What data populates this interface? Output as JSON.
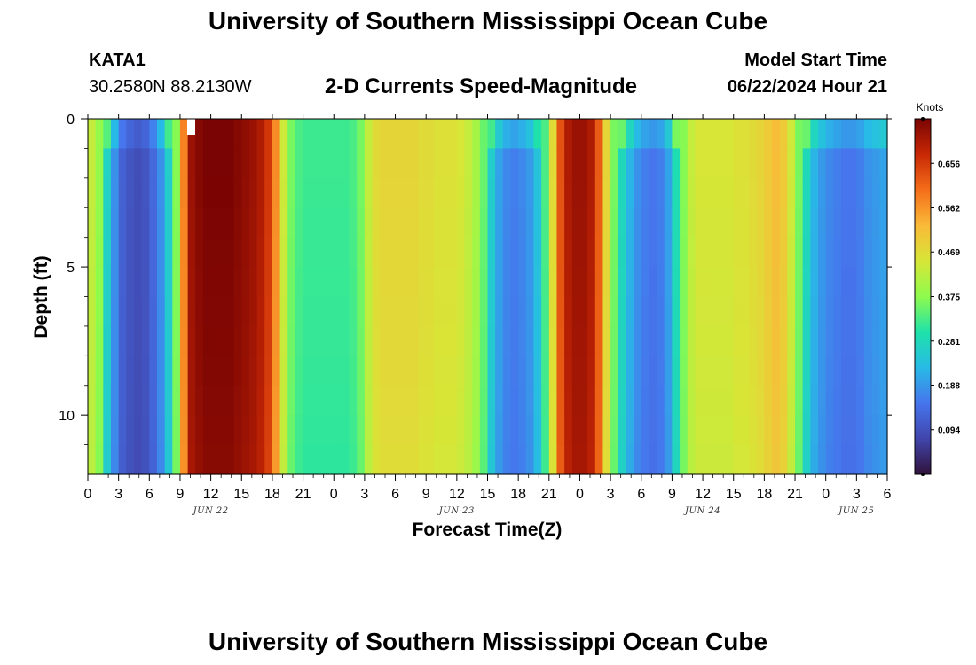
{
  "header": {
    "title": "University of Southern Mississippi Ocean Cube",
    "station": "KATA1",
    "coords": "30.2580N  88.2130W",
    "plot_title": "2-D Currents Speed-Magnitude",
    "model_start_label": "Model Start Time",
    "model_start_value": "06/22/2024 Hour 21"
  },
  "footer": {
    "title": "University of Southern Mississippi Ocean Cube"
  },
  "chart_data": {
    "type": "heatmap",
    "title": "2-D Currents Speed-Magnitude",
    "xlabel": "Forecast Time(Z)",
    "ylabel": "Depth (ft)",
    "colorbar_unit": "Knots",
    "colorbar_ticks": [
      "0.094",
      "0.188",
      "0.281",
      "0.375",
      "0.469",
      "0.562",
      "0.656"
    ],
    "colorbar_values": [
      0.094,
      0.188,
      0.281,
      0.375,
      0.469,
      0.562,
      0.656
    ],
    "value_range": [
      0.0,
      0.75
    ],
    "x_range_hours": [
      0,
      78
    ],
    "x_tick_labels": [
      "0",
      "3",
      "6",
      "9",
      "12",
      "15",
      "18",
      "21",
      "0",
      "3",
      "6",
      "9",
      "12",
      "15",
      "18",
      "21",
      "0",
      "3",
      "6",
      "9",
      "12",
      "15",
      "18",
      "21",
      "0",
      "3",
      "6"
    ],
    "date_labels": [
      {
        "label": "JUN 22",
        "hour": 12
      },
      {
        "label": "JUN 23",
        "hour": 36
      },
      {
        "label": "JUN 24",
        "hour": 60
      },
      {
        "label": "JUN 25",
        "hour": 75
      }
    ],
    "y_range_ft": [
      0,
      12
    ],
    "y_tick_labels": [
      "0",
      "5",
      "10"
    ],
    "y_tick_values": [
      0,
      5,
      10
    ],
    "speed_profile_columns": [
      0.43,
      0.38,
      0.27,
      0.18,
      0.12,
      0.1,
      0.09,
      0.1,
      0.13,
      0.18,
      0.26,
      0.37,
      0.58,
      0.72,
      0.74,
      0.75,
      0.75,
      0.75,
      0.75,
      0.74,
      0.73,
      0.72,
      0.7,
      0.66,
      0.57,
      0.44,
      0.36,
      0.33,
      0.32,
      0.32,
      0.32,
      0.32,
      0.32,
      0.32,
      0.33,
      0.36,
      0.43,
      0.47,
      0.48,
      0.48,
      0.48,
      0.48,
      0.48,
      0.47,
      0.47,
      0.46,
      0.46,
      0.46,
      0.45,
      0.43,
      0.4,
      0.35,
      0.26,
      0.2,
      0.17,
      0.16,
      0.17,
      0.19,
      0.24,
      0.33,
      0.47,
      0.63,
      0.7,
      0.72,
      0.72,
      0.7,
      0.62,
      0.48,
      0.36,
      0.28,
      0.22,
      0.18,
      0.16,
      0.15,
      0.16,
      0.2,
      0.29,
      0.37,
      0.43,
      0.45,
      0.45,
      0.45,
      0.45,
      0.45,
      0.46,
      0.46,
      0.47,
      0.48,
      0.5,
      0.52,
      0.5,
      0.44,
      0.36,
      0.28,
      0.22,
      0.19,
      0.17,
      0.16,
      0.15,
      0.15,
      0.16,
      0.18,
      0.19,
      0.2
    ],
    "depth_profile_factor": [
      1.0,
      1.0,
      0.99,
      0.97,
      0.96,
      0.95,
      0.94,
      0.93,
      0.92,
      0.9,
      0.88,
      0.86
    ]
  }
}
